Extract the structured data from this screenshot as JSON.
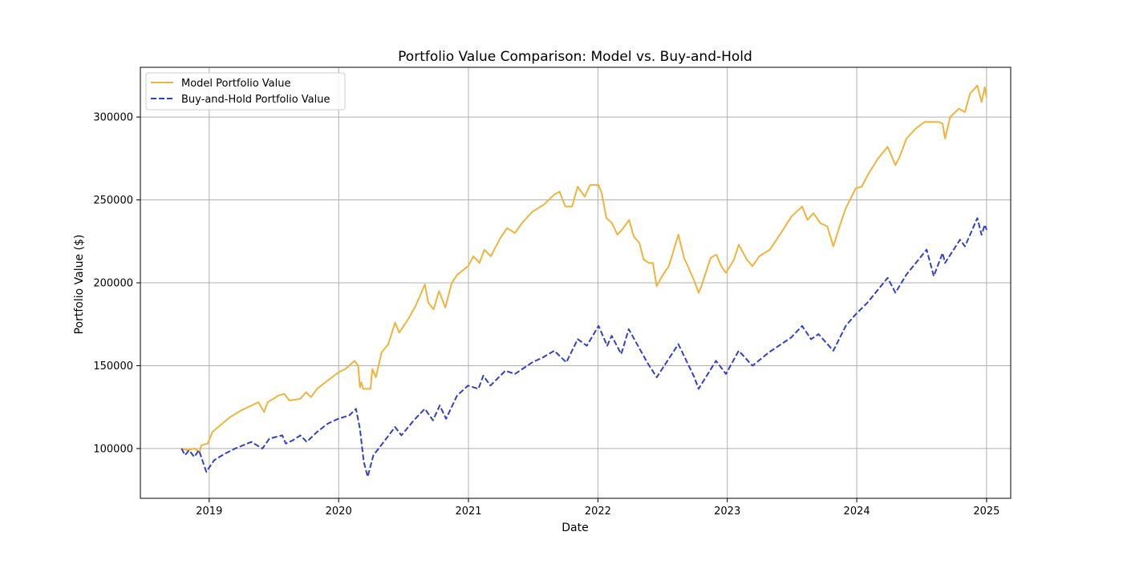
{
  "chart_data": {
    "type": "line",
    "title": "Portfolio Value Comparison: Model vs. Buy-and-Hold",
    "xlabel": "Date",
    "ylabel": "Portfolio Value ($)",
    "xlim": [
      "2018-06-21",
      "2025-03-10"
    ],
    "ylim": [
      70000,
      330000
    ],
    "grid": true,
    "legend_position": "upper-left",
    "x_ticks": [
      {
        "date": "2019-01-01",
        "label": "2019"
      },
      {
        "date": "2020-01-01",
        "label": "2020"
      },
      {
        "date": "2021-01-01",
        "label": "2021"
      },
      {
        "date": "2022-01-01",
        "label": "2022"
      },
      {
        "date": "2023-01-01",
        "label": "2023"
      },
      {
        "date": "2024-01-01",
        "label": "2024"
      },
      {
        "date": "2025-01-01",
        "label": "2025"
      }
    ],
    "y_ticks": [
      {
        "value": 100000,
        "label": "100000"
      },
      {
        "value": 150000,
        "label": "150000"
      },
      {
        "value": 200000,
        "label": "200000"
      },
      {
        "value": 250000,
        "label": "250000"
      },
      {
        "value": 300000,
        "label": "300000"
      }
    ],
    "series": [
      {
        "name": "Model Portfolio Value",
        "color": "#f0b43c",
        "style": "solid",
        "points": [
          [
            "2018-10-15",
            100000
          ],
          [
            "2018-11-01",
            99000
          ],
          [
            "2018-11-20",
            100000
          ],
          [
            "2018-12-05",
            98000
          ],
          [
            "2018-12-10",
            102000
          ],
          [
            "2018-12-28",
            103000
          ],
          [
            "2019-01-10",
            110000
          ],
          [
            "2019-02-01",
            114000
          ],
          [
            "2019-03-01",
            119000
          ],
          [
            "2019-04-01",
            123000
          ],
          [
            "2019-05-01",
            126000
          ],
          [
            "2019-05-20",
            128000
          ],
          [
            "2019-06-05",
            122000
          ],
          [
            "2019-06-15",
            128000
          ],
          [
            "2019-07-01",
            130000
          ],
          [
            "2019-07-15",
            132000
          ],
          [
            "2019-08-01",
            133000
          ],
          [
            "2019-08-15",
            129000
          ],
          [
            "2019-09-01",
            129500
          ],
          [
            "2019-09-15",
            130000
          ],
          [
            "2019-10-01",
            134000
          ],
          [
            "2019-10-15",
            131000
          ],
          [
            "2019-11-01",
            136000
          ],
          [
            "2019-12-01",
            141000
          ],
          [
            "2020-01-01",
            146000
          ],
          [
            "2020-01-20",
            148000
          ],
          [
            "2020-02-15",
            153000
          ],
          [
            "2020-02-25",
            150000
          ],
          [
            "2020-03-01",
            137000
          ],
          [
            "2020-03-05",
            140000
          ],
          [
            "2020-03-10",
            136000
          ],
          [
            "2020-03-31",
            136000
          ],
          [
            "2020-04-05",
            148000
          ],
          [
            "2020-04-15",
            143000
          ],
          [
            "2020-05-01",
            158000
          ],
          [
            "2020-05-20",
            163000
          ],
          [
            "2020-06-08",
            176000
          ],
          [
            "2020-06-20",
            170000
          ],
          [
            "2020-07-15",
            178000
          ],
          [
            "2020-08-05",
            186000
          ],
          [
            "2020-08-31",
            199000
          ],
          [
            "2020-09-10",
            188000
          ],
          [
            "2020-09-25",
            184000
          ],
          [
            "2020-10-10",
            195000
          ],
          [
            "2020-10-28",
            185000
          ],
          [
            "2020-11-15",
            200000
          ],
          [
            "2020-12-01",
            205000
          ],
          [
            "2020-12-31",
            210000
          ],
          [
            "2021-01-15",
            216000
          ],
          [
            "2021-02-01",
            212000
          ],
          [
            "2021-02-15",
            220000
          ],
          [
            "2021-03-05",
            216000
          ],
          [
            "2021-04-01",
            227000
          ],
          [
            "2021-04-20",
            233000
          ],
          [
            "2021-05-12",
            230000
          ],
          [
            "2021-06-01",
            236000
          ],
          [
            "2021-07-01",
            243000
          ],
          [
            "2021-08-01",
            247000
          ],
          [
            "2021-08-30",
            253000
          ],
          [
            "2021-09-15",
            255000
          ],
          [
            "2021-10-01",
            246000
          ],
          [
            "2021-10-20",
            246000
          ],
          [
            "2021-11-05",
            258000
          ],
          [
            "2021-11-25",
            252000
          ],
          [
            "2021-12-10",
            259000
          ],
          [
            "2022-01-03",
            259000
          ],
          [
            "2022-01-12",
            254000
          ],
          [
            "2022-01-25",
            239000
          ],
          [
            "2022-02-10",
            236000
          ],
          [
            "2022-02-25",
            229000
          ],
          [
            "2022-03-10",
            232000
          ],
          [
            "2022-03-30",
            238000
          ],
          [
            "2022-04-12",
            228000
          ],
          [
            "2022-04-28",
            224000
          ],
          [
            "2022-05-10",
            214000
          ],
          [
            "2022-05-25",
            212000
          ],
          [
            "2022-06-05",
            212000
          ],
          [
            "2022-06-16",
            198000
          ],
          [
            "2022-07-01",
            204000
          ],
          [
            "2022-07-20",
            210000
          ],
          [
            "2022-08-16",
            229000
          ],
          [
            "2022-09-01",
            215000
          ],
          [
            "2022-09-20",
            206000
          ],
          [
            "2022-09-30",
            201000
          ],
          [
            "2022-10-12",
            194000
          ],
          [
            "2022-10-20",
            198000
          ],
          [
            "2022-11-01",
            206000
          ],
          [
            "2022-11-15",
            215000
          ],
          [
            "2022-12-01",
            217000
          ],
          [
            "2022-12-15",
            210000
          ],
          [
            "2022-12-28",
            206000
          ],
          [
            "2023-01-20",
            214000
          ],
          [
            "2023-02-02",
            223000
          ],
          [
            "2023-02-25",
            214000
          ],
          [
            "2023-03-13",
            210000
          ],
          [
            "2023-04-01",
            216000
          ],
          [
            "2023-05-01",
            220000
          ],
          [
            "2023-06-01",
            230000
          ],
          [
            "2023-07-01",
            240000
          ],
          [
            "2023-07-31",
            246000
          ],
          [
            "2023-08-15",
            238000
          ],
          [
            "2023-09-01",
            242000
          ],
          [
            "2023-09-20",
            236000
          ],
          [
            "2023-10-10",
            234000
          ],
          [
            "2023-10-27",
            222000
          ],
          [
            "2023-11-15",
            235000
          ],
          [
            "2023-12-01",
            245000
          ],
          [
            "2023-12-29",
            257000
          ],
          [
            "2024-01-15",
            258000
          ],
          [
            "2024-02-01",
            265000
          ],
          [
            "2024-03-01",
            275000
          ],
          [
            "2024-03-28",
            282000
          ],
          [
            "2024-04-19",
            271000
          ],
          [
            "2024-05-01",
            276000
          ],
          [
            "2024-05-20",
            287000
          ],
          [
            "2024-06-15",
            293000
          ],
          [
            "2024-07-10",
            297000
          ],
          [
            "2024-08-01",
            297000
          ],
          [
            "2024-08-20",
            297000
          ],
          [
            "2024-08-30",
            296000
          ],
          [
            "2024-09-06",
            287000
          ],
          [
            "2024-09-20",
            300000
          ],
          [
            "2024-10-15",
            305000
          ],
          [
            "2024-11-01",
            303000
          ],
          [
            "2024-11-15",
            314000
          ],
          [
            "2024-12-06",
            319000
          ],
          [
            "2024-12-18",
            309000
          ],
          [
            "2024-12-27",
            318000
          ],
          [
            "2025-01-01",
            312000
          ]
        ]
      },
      {
        "name": "Buy-and-Hold Portfolio Value",
        "color": "#3240c8",
        "style": "dashed",
        "points": [
          [
            "2018-10-15",
            100000
          ],
          [
            "2018-10-25",
            96000
          ],
          [
            "2018-11-05",
            99000
          ],
          [
            "2018-11-20",
            95000
          ],
          [
            "2018-12-03",
            99000
          ],
          [
            "2018-12-24",
            86000
          ],
          [
            "2019-01-15",
            93000
          ],
          [
            "2019-02-15",
            97000
          ],
          [
            "2019-03-15",
            100000
          ],
          [
            "2019-04-30",
            104000
          ],
          [
            "2019-05-31",
            100000
          ],
          [
            "2019-06-20",
            106000
          ],
          [
            "2019-07-26",
            108000
          ],
          [
            "2019-08-05",
            103000
          ],
          [
            "2019-08-25",
            105000
          ],
          [
            "2019-09-15",
            108000
          ],
          [
            "2019-10-03",
            104000
          ],
          [
            "2019-11-01",
            110000
          ],
          [
            "2019-12-01",
            115000
          ],
          [
            "2019-12-31",
            118000
          ],
          [
            "2020-01-31",
            120000
          ],
          [
            "2020-02-19",
            124000
          ],
          [
            "2020-03-01",
            112000
          ],
          [
            "2020-03-12",
            92000
          ],
          [
            "2020-03-23",
            83000
          ],
          [
            "2020-04-08",
            96000
          ],
          [
            "2020-04-30",
            102000
          ],
          [
            "2020-06-08",
            113000
          ],
          [
            "2020-06-26",
            108000
          ],
          [
            "2020-07-31",
            117000
          ],
          [
            "2020-08-31",
            124000
          ],
          [
            "2020-09-23",
            117000
          ],
          [
            "2020-10-12",
            126000
          ],
          [
            "2020-10-30",
            118000
          ],
          [
            "2020-11-30",
            132000
          ],
          [
            "2020-12-31",
            138000
          ],
          [
            "2021-01-29",
            136000
          ],
          [
            "2021-02-12",
            144000
          ],
          [
            "2021-03-04",
            138000
          ],
          [
            "2021-04-15",
            147000
          ],
          [
            "2021-05-12",
            145000
          ],
          [
            "2021-06-30",
            152000
          ],
          [
            "2021-07-30",
            155000
          ],
          [
            "2021-08-31",
            159000
          ],
          [
            "2021-10-04",
            152000
          ],
          [
            "2021-11-05",
            166000
          ],
          [
            "2021-12-01",
            162000
          ],
          [
            "2022-01-03",
            174000
          ],
          [
            "2022-01-27",
            162000
          ],
          [
            "2022-02-09",
            168000
          ],
          [
            "2022-03-08",
            157000
          ],
          [
            "2022-03-29",
            172000
          ],
          [
            "2022-05-20",
            152000
          ],
          [
            "2022-06-16",
            143000
          ],
          [
            "2022-08-16",
            163000
          ],
          [
            "2022-09-30",
            143000
          ],
          [
            "2022-10-12",
            136000
          ],
          [
            "2022-11-30",
            153000
          ],
          [
            "2022-12-28",
            145000
          ],
          [
            "2023-02-02",
            159000
          ],
          [
            "2023-03-13",
            150000
          ],
          [
            "2023-04-28",
            158000
          ],
          [
            "2023-06-30",
            167000
          ],
          [
            "2023-07-31",
            174000
          ],
          [
            "2023-08-25",
            166000
          ],
          [
            "2023-09-15",
            169000
          ],
          [
            "2023-10-27",
            159000
          ],
          [
            "2023-12-01",
            174000
          ],
          [
            "2023-12-29",
            181000
          ],
          [
            "2024-01-31",
            188000
          ],
          [
            "2024-03-28",
            203000
          ],
          [
            "2024-04-19",
            194000
          ],
          [
            "2024-05-20",
            205000
          ],
          [
            "2024-07-16",
            220000
          ],
          [
            "2024-08-05",
            204000
          ],
          [
            "2024-08-30",
            218000
          ],
          [
            "2024-09-06",
            212000
          ],
          [
            "2024-10-18",
            226000
          ],
          [
            "2024-11-01",
            222000
          ],
          [
            "2024-12-06",
            239000
          ],
          [
            "2024-12-18",
            229000
          ],
          [
            "2024-12-27",
            235000
          ],
          [
            "2025-01-01",
            232000
          ]
        ]
      }
    ]
  }
}
